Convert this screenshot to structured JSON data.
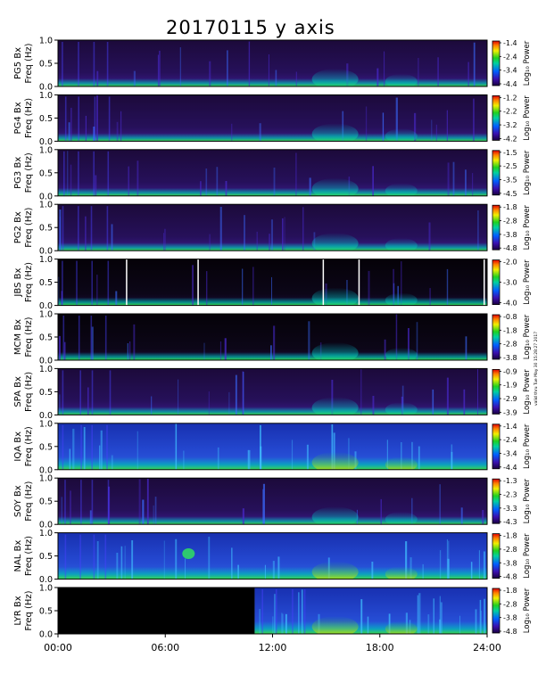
{
  "chart_data": {
    "type": "heatmap",
    "title": "20170115 y axis",
    "x_ticks": [
      "00:00",
      "06:00",
      "12:00",
      "18:00",
      "24:00"
    ],
    "x_range_hours": [
      0,
      24
    ],
    "y_ticks": [
      "0.0",
      "0.5",
      "1.0"
    ],
    "y_range_hz": [
      0,
      1.0
    ],
    "colorbar_label": "Log₁₀ Power",
    "side_note": "valid thru Tue May 30 15:28:27 2017",
    "panels": [
      {
        "station": "PG5",
        "ylabel": [
          "PG5 Bx",
          "Freq (Hz)"
        ],
        "cbar_ticks": [
          "-1.4",
          "-2.4",
          "-3.4",
          "-4.4"
        ],
        "bg": "dark",
        "start_hour": 0
      },
      {
        "station": "PG4",
        "ylabel": [
          "PG4 Bx",
          "Freq (Hz)"
        ],
        "cbar_ticks": [
          "-1.2",
          "-2.2",
          "-3.2",
          "-4.2"
        ],
        "bg": "dark",
        "start_hour": 0
      },
      {
        "station": "PG3",
        "ylabel": [
          "PG3 Bx",
          "Freq (Hz)"
        ],
        "cbar_ticks": [
          "-1.5",
          "-2.5",
          "-3.5",
          "-4.5"
        ],
        "bg": "dark",
        "start_hour": 0
      },
      {
        "station": "PG2",
        "ylabel": [
          "PG2 Bx",
          "Freq (Hz)"
        ],
        "cbar_ticks": [
          "-1.8",
          "-2.8",
          "-3.8",
          "-4.8"
        ],
        "bg": "dark",
        "start_hour": 0
      },
      {
        "station": "JBS",
        "ylabel": [
          "JBS Bx",
          "Freq (Hz)"
        ],
        "cbar_ticks": [
          "-2.0",
          "-3.0",
          "-4.0"
        ],
        "bg": "black",
        "start_hour": 0
      },
      {
        "station": "MCM",
        "ylabel": [
          "MCM Bx",
          "Freq (Hz)"
        ],
        "cbar_ticks": [
          "-0.8",
          "-1.8",
          "-2.8",
          "-3.8"
        ],
        "bg": "black",
        "start_hour": 0
      },
      {
        "station": "SPA",
        "ylabel": [
          "SPA Bx",
          "Freq (Hz)"
        ],
        "cbar_ticks": [
          "-0.9",
          "-1.9",
          "-2.9",
          "-3.9"
        ],
        "bg": "dark",
        "start_hour": 0
      },
      {
        "station": "IQA",
        "ylabel": [
          "IQA Bx",
          "Freq (Hz)"
        ],
        "cbar_ticks": [
          "-1.4",
          "-2.4",
          "-3.4",
          "-4.4"
        ],
        "bg": "blue",
        "start_hour": 0
      },
      {
        "station": "SOY",
        "ylabel": [
          "SOY Bx",
          "Freq (Hz)"
        ],
        "cbar_ticks": [
          "-1.3",
          "-2.3",
          "-3.3",
          "-4.3"
        ],
        "bg": "dark",
        "start_hour": 0
      },
      {
        "station": "NAL",
        "ylabel": [
          "NAL Bx",
          "Freq (Hz)"
        ],
        "cbar_ticks": [
          "-1.8",
          "-2.8",
          "-3.8",
          "-4.8"
        ],
        "bg": "blue",
        "start_hour": 0
      },
      {
        "station": "LYR",
        "ylabel": [
          "LYR Bx",
          "Freq (Hz)"
        ],
        "cbar_ticks": [
          "-1.8",
          "-2.8",
          "-3.8",
          "-4.8"
        ],
        "bg": "blue",
        "start_hour": 11.0
      }
    ]
  }
}
